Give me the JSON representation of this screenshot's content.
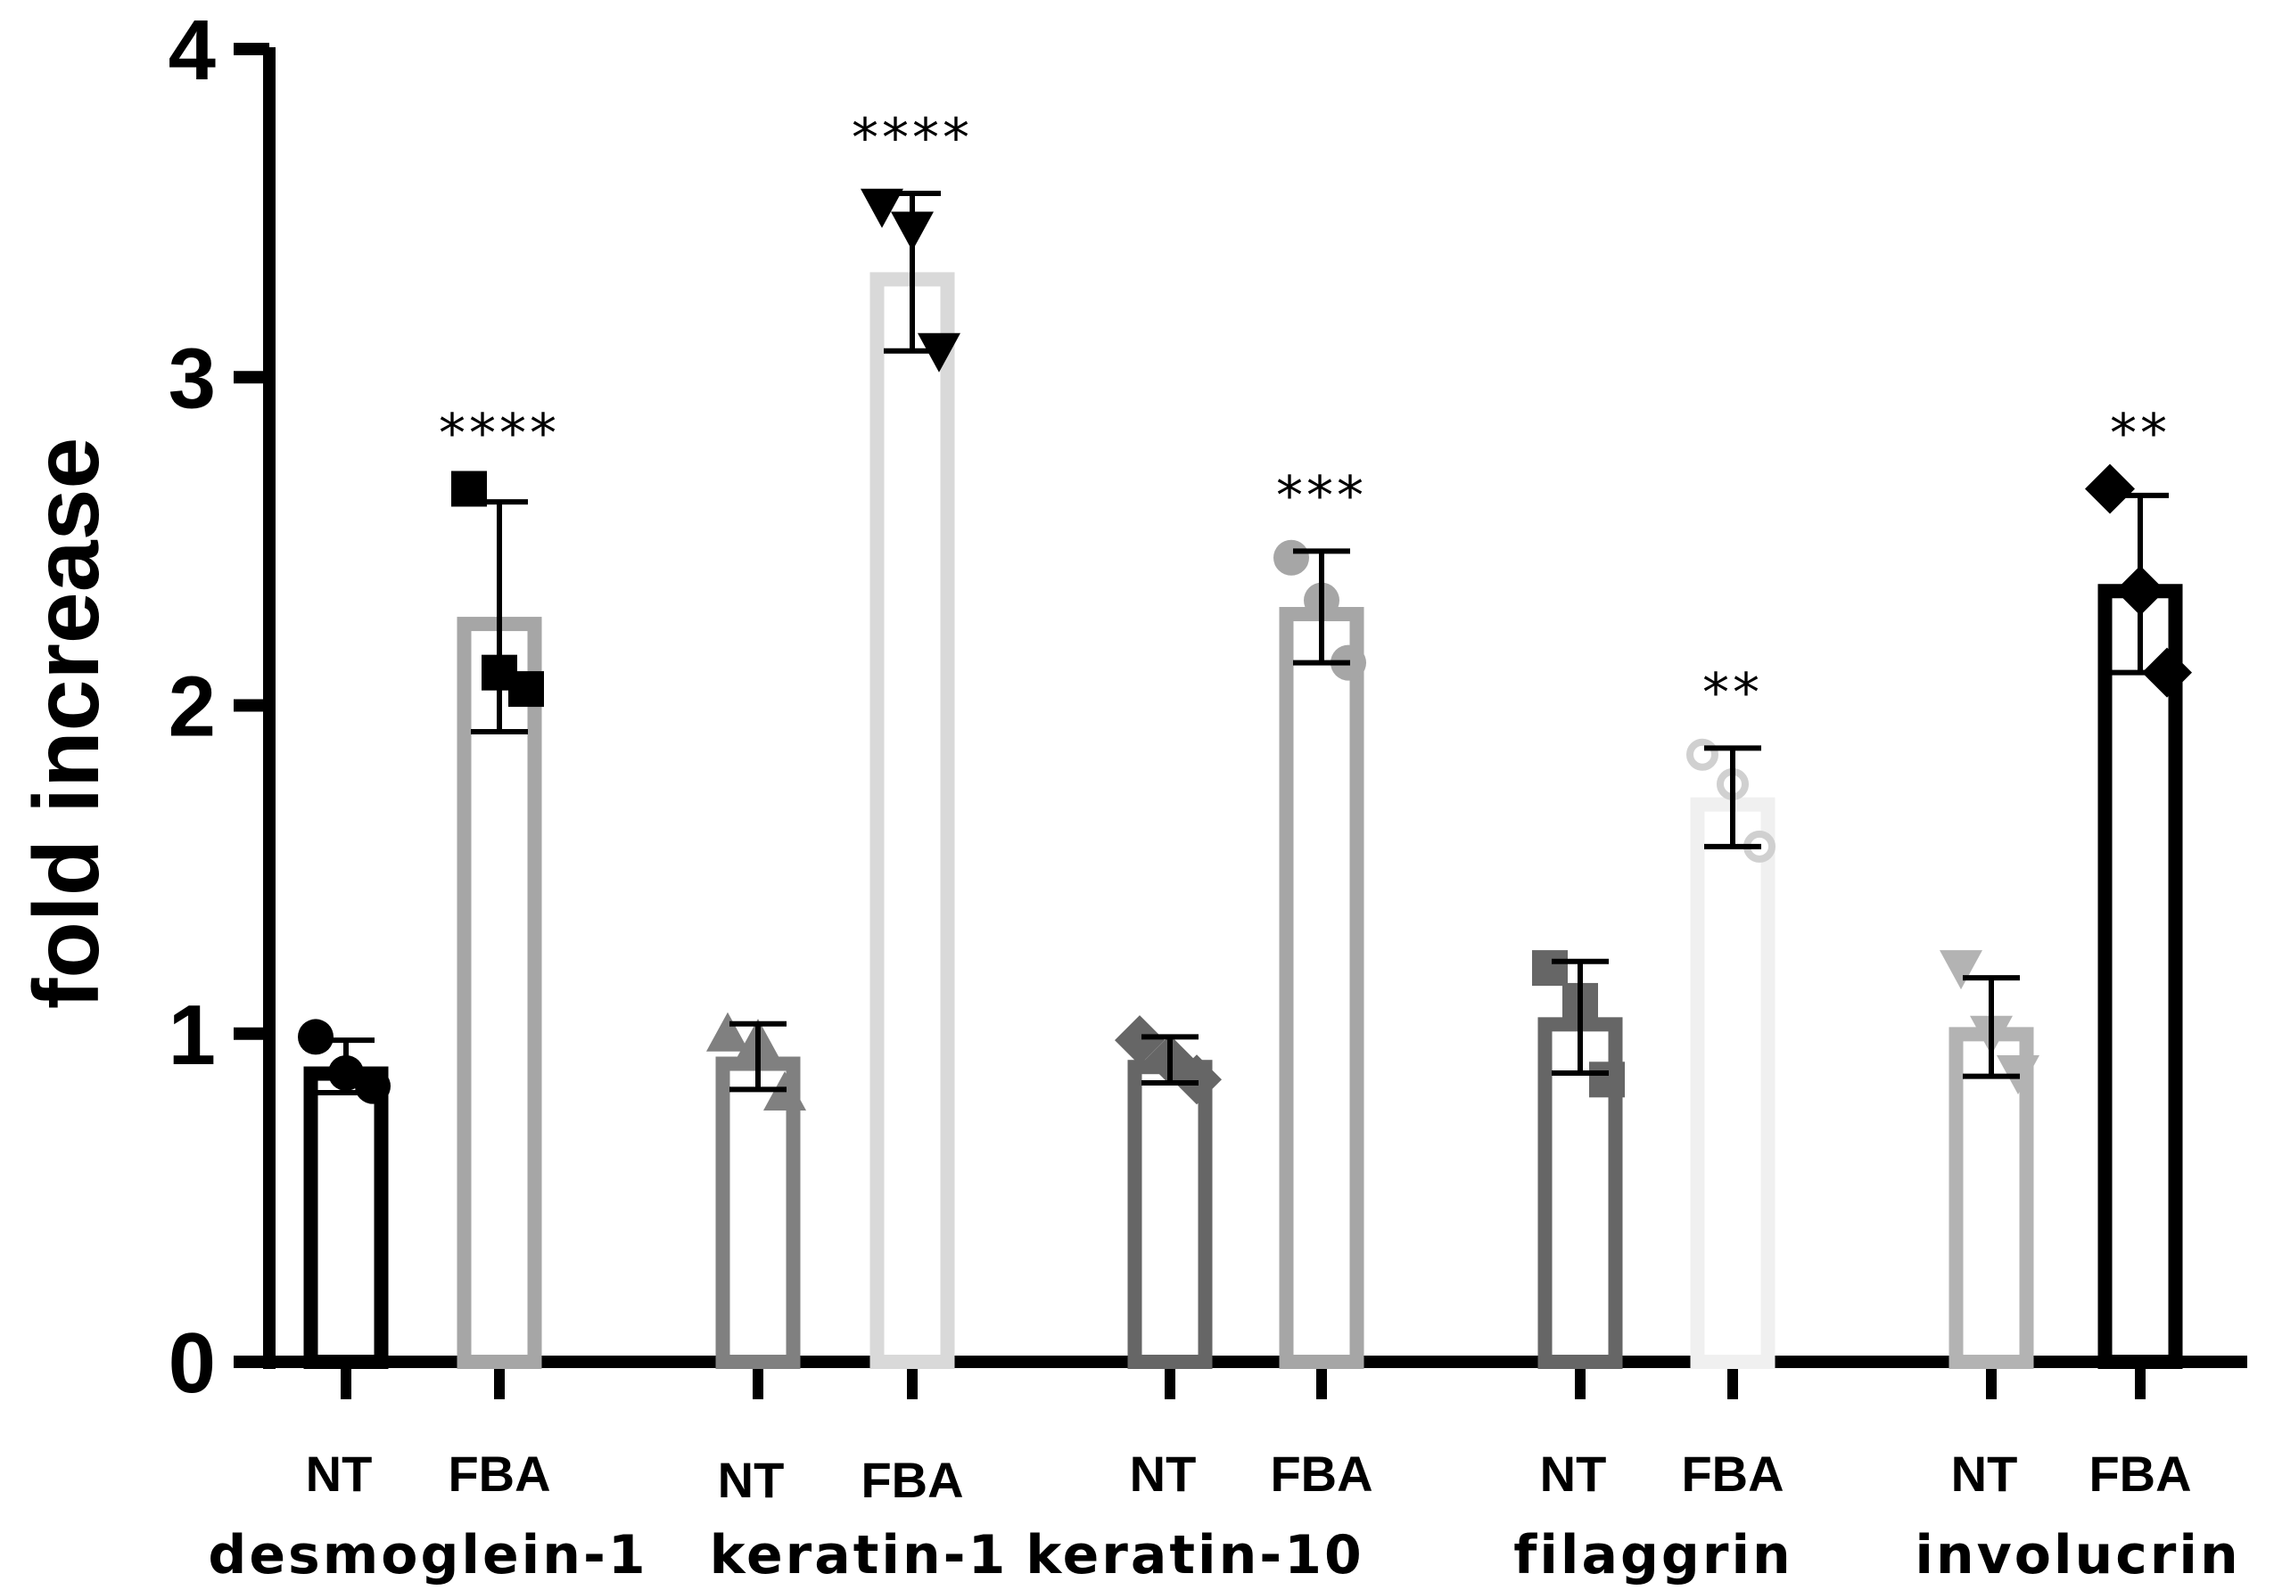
{
  "chart_data": {
    "type": "bar",
    "title": "",
    "xlabel": "",
    "ylabel": "fold increase",
    "ylim": [
      0,
      4
    ],
    "yticks": [
      "0",
      "1",
      "2",
      "3",
      "4"
    ],
    "grid": false,
    "legend": "none",
    "groups": [
      {
        "name": "desmoglein-1",
        "bars": [
          {
            "condition": "NT",
            "value": 0.9,
            "error": 0.08,
            "color": "#000000",
            "marker": "circle",
            "points": [
              0.99,
              0.88,
              0.84
            ],
            "significance": ""
          },
          {
            "condition": "FBA",
            "value": 2.27,
            "error": 0.35,
            "color": "#a6a6a6",
            "marker": "square",
            "points": [
              2.66,
              2.1,
              2.05
            ],
            "significance": "****"
          }
        ]
      },
      {
        "name": "keratin-1",
        "bars": [
          {
            "condition": "NT",
            "value": 0.93,
            "error": 0.1,
            "color": "#808080",
            "marker": "triangle-up",
            "points": [
              1.0,
              0.98,
              0.82
            ],
            "significance": ""
          },
          {
            "condition": "FBA",
            "value": 3.32,
            "error": 0.24,
            "color": "#d9d9d9",
            "marker": "triangle-down",
            "points": [
              3.52,
              3.45,
              3.08
            ],
            "significance": "****"
          }
        ]
      },
      {
        "name": "keratin-10",
        "bars": [
          {
            "condition": "NT",
            "value": 0.92,
            "error": 0.07,
            "color": "#666666",
            "marker": "diamond",
            "points": [
              0.98,
              0.92,
              0.86
            ],
            "significance": ""
          },
          {
            "condition": "FBA",
            "value": 2.3,
            "error": 0.17,
            "color": "#a6a6a6",
            "marker": "circle",
            "points": [
              2.45,
              2.32,
              2.13
            ],
            "significance": "***"
          }
        ]
      },
      {
        "name": "filaggrin",
        "bars": [
          {
            "condition": "NT",
            "value": 1.05,
            "error": 0.17,
            "color": "#666666",
            "marker": "square",
            "points": [
              1.2,
              1.1,
              0.86
            ],
            "significance": ""
          },
          {
            "condition": "FBA",
            "value": 1.72,
            "error": 0.15,
            "color": "#f0f0f0",
            "marker": "circle-open",
            "points": [
              1.85,
              1.76,
              1.57
            ],
            "significance": "**"
          }
        ]
      },
      {
        "name": "involucrin",
        "bars": [
          {
            "condition": "NT",
            "value": 1.02,
            "error": 0.15,
            "color": "#b3b3b3",
            "marker": "triangle-down",
            "points": [
              1.2,
              1.0,
              0.88
            ],
            "significance": ""
          },
          {
            "condition": "FBA",
            "value": 2.37,
            "error": 0.27,
            "color": "#000000",
            "marker": "diamond",
            "points": [
              2.66,
              2.35,
              2.1
            ],
            "significance": "**"
          }
        ]
      }
    ]
  }
}
